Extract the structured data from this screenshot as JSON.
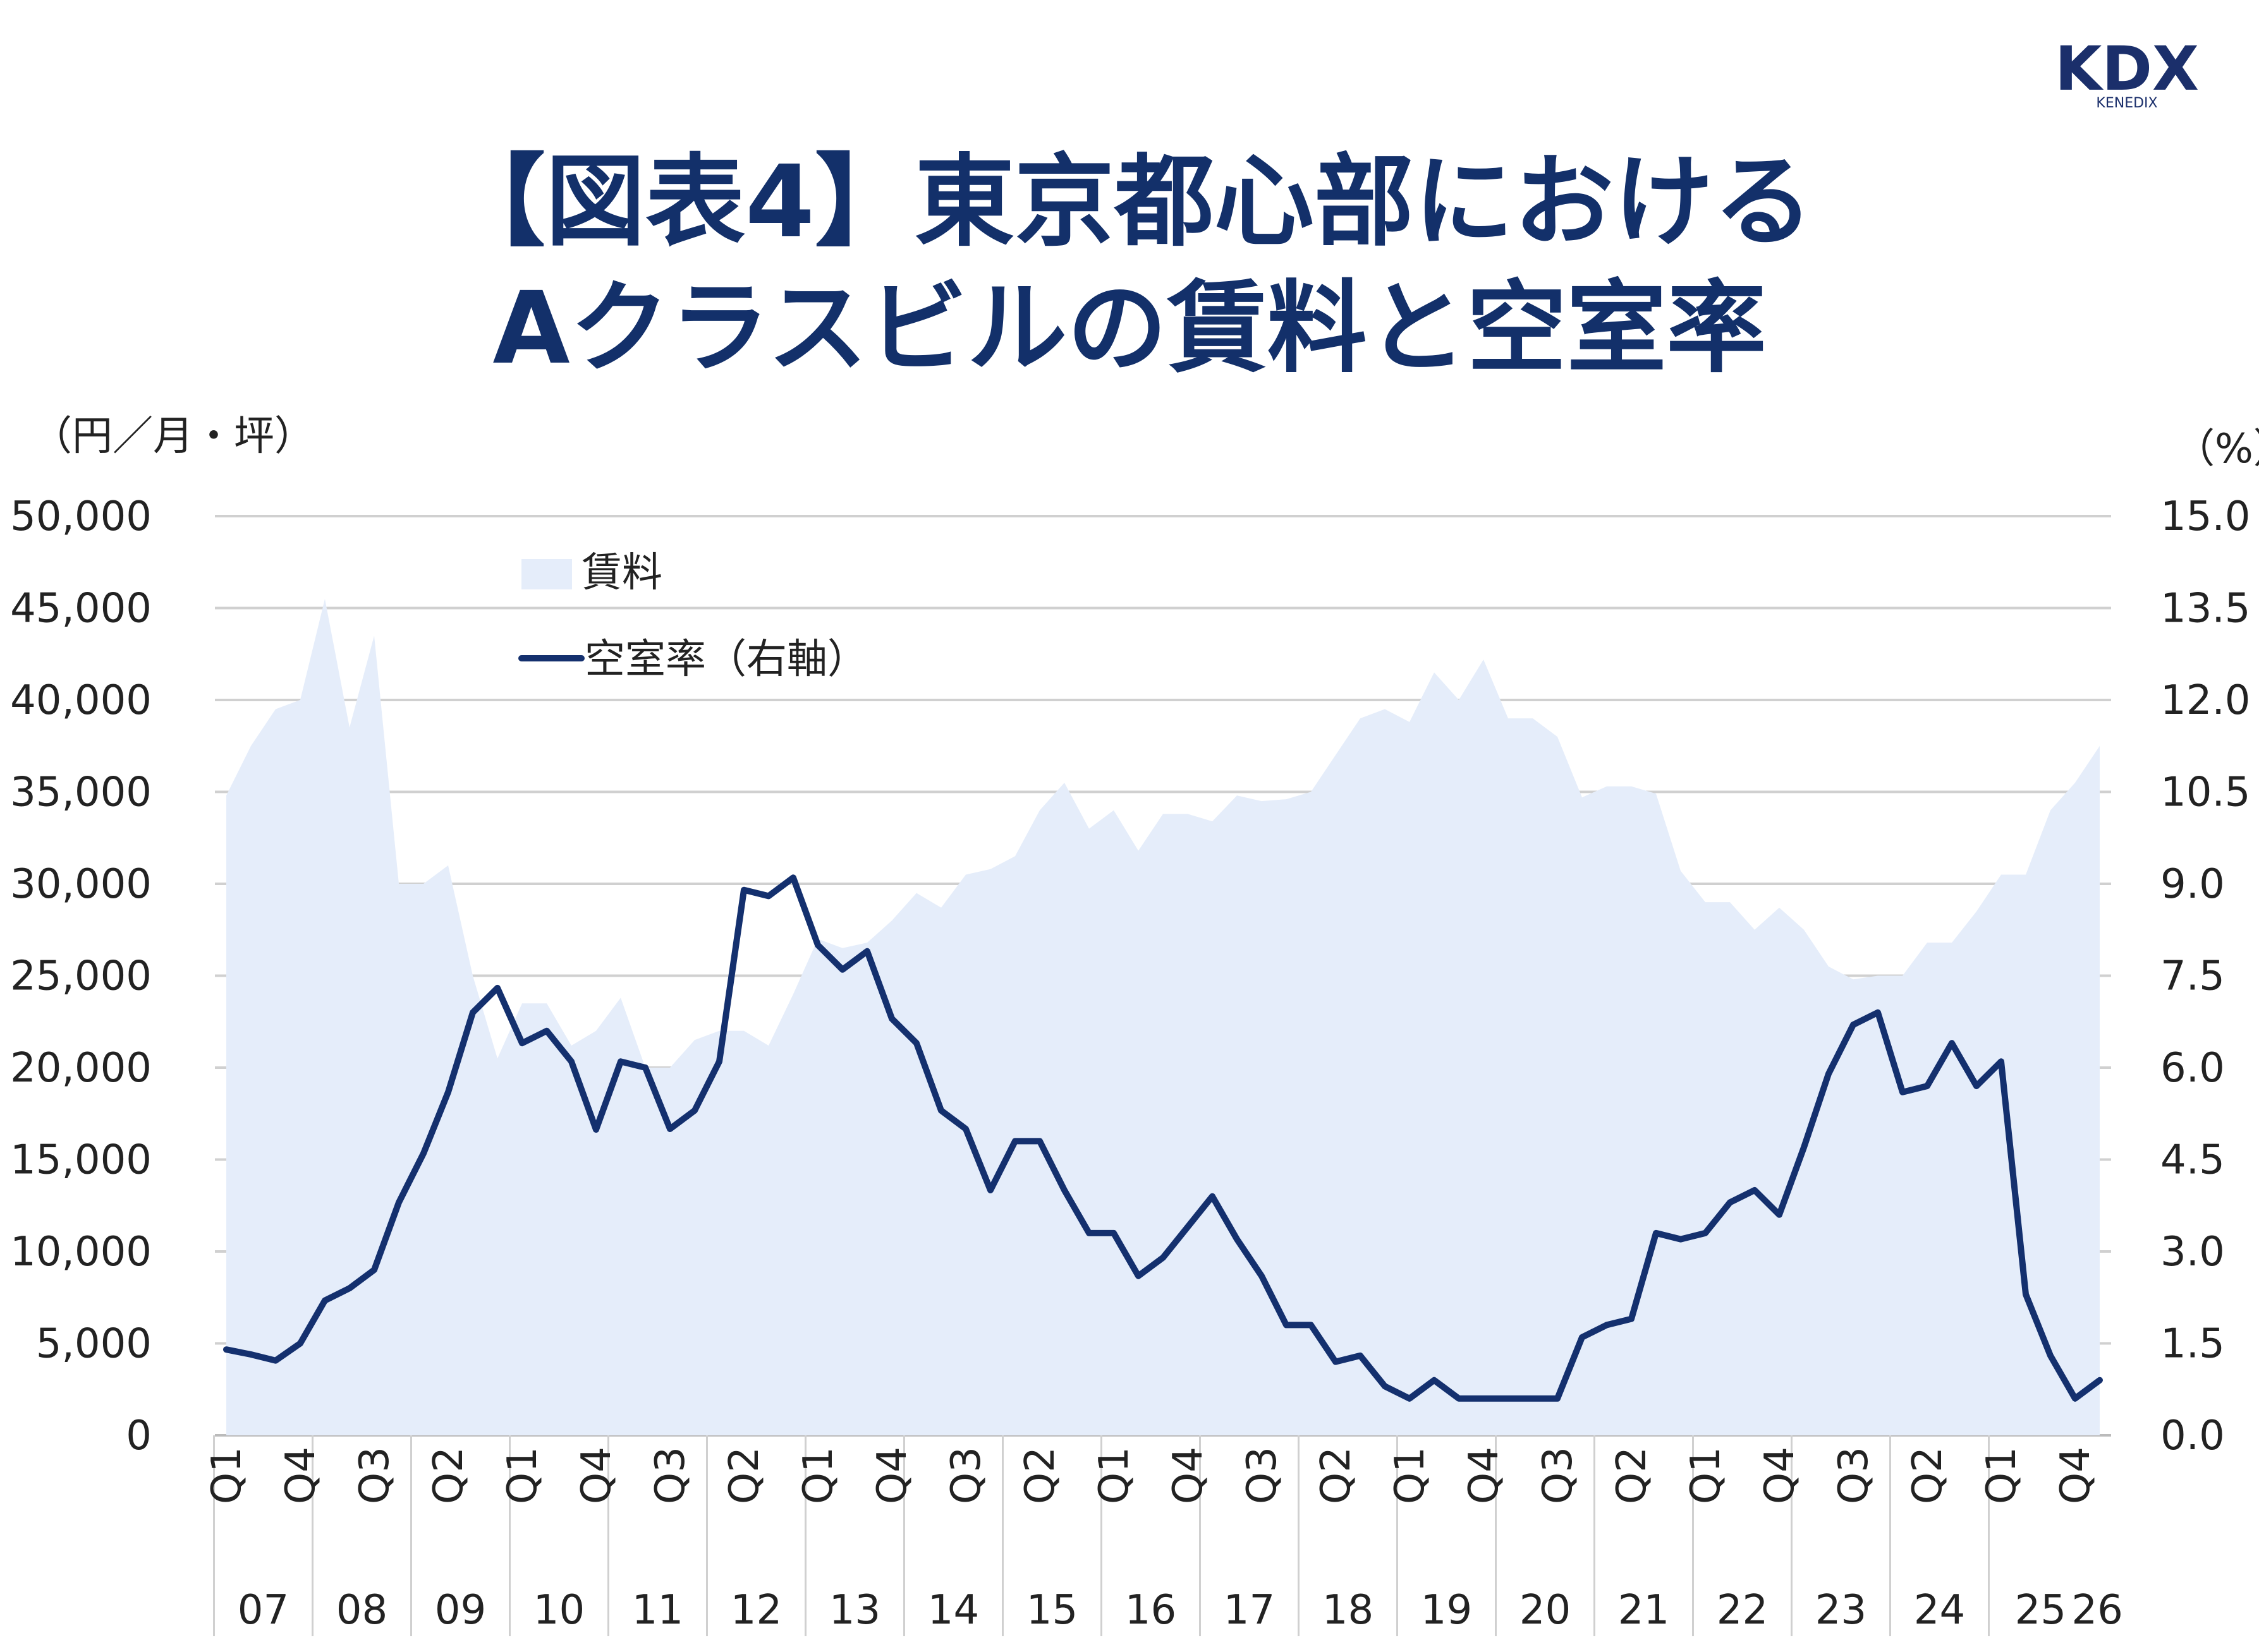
{
  "brand": {
    "logo_text": "KDX",
    "logo_subtext": "KENEDIX",
    "color": "#1b2f6b"
  },
  "title": {
    "line1": "【図表4】東京都心部における",
    "line2": "Aクラスビルの賃料と空室率"
  },
  "colors": {
    "rent_fill": "#e5edfa",
    "vacancy_line": "#14306e",
    "grid": "#cccccc",
    "text": "#222222"
  },
  "chart_data": {
    "type": "area+line",
    "y_left_unit": "（円／月・坪）",
    "y_right_unit": "（%）",
    "y_left_range": [
      0,
      50000
    ],
    "y_right_range": [
      0.0,
      15.0
    ],
    "y_left_ticks": [
      "50,000",
      "45,000",
      "40,000",
      "35,000",
      "30,000",
      "25,000",
      "20,000",
      "15,000",
      "10,000",
      "5,000",
      "0"
    ],
    "y_right_ticks": [
      "15.0",
      "13.5",
      "12.0",
      "10.5",
      "9.0",
      "7.5",
      "6.0",
      "4.5",
      "3.0",
      "1.5",
      "0.0"
    ],
    "grid": true,
    "legend_placement": "top-left",
    "x_quarter_labels": [
      "Q1",
      "Q4",
      "Q3",
      "Q2",
      "Q1",
      "Q4",
      "Q3",
      "Q2",
      "Q1",
      "Q4",
      "Q3",
      "Q2",
      "Q1",
      "Q4",
      "Q3",
      "Q2",
      "Q1",
      "Q4",
      "Q3",
      "Q2",
      "Q1",
      "Q4",
      "Q3",
      "Q2",
      "Q1",
      "Q4"
    ],
    "x_quarter_label_index": [
      0,
      3,
      6,
      9,
      12,
      15,
      18,
      21,
      24,
      27,
      30,
      33,
      36,
      39,
      42,
      45,
      48,
      51,
      54,
      57,
      60,
      63,
      66,
      69,
      72,
      75
    ],
    "x_year_labels": [
      "07",
      "08",
      "09",
      "10",
      "11",
      "12",
      "13",
      "14",
      "15",
      "16",
      "17",
      "18",
      "19",
      "20",
      "21",
      "22",
      "23",
      "24",
      "25",
      "26"
    ],
    "x_year_label_index": [
      1.5,
      5.5,
      9.5,
      13.5,
      17.5,
      21.5,
      25.5,
      29.5,
      33.5,
      37.5,
      41.5,
      45.5,
      49.5,
      53.5,
      57.5,
      61.5,
      65.5,
      69.5,
      73.5,
      75.5
    ],
    "series": [
      {
        "name": "賃料",
        "axis": "left",
        "style": "area",
        "values": [
          34800,
          37500,
          39500,
          40000,
          45500,
          38500,
          43500,
          30000,
          30000,
          31000,
          25000,
          20500,
          23500,
          23500,
          21200,
          22000,
          23800,
          20000,
          20000,
          21500,
          22000,
          22000,
          21200,
          24000,
          27000,
          26500,
          26800,
          28000,
          29500,
          28700,
          30500,
          30800,
          31500,
          34000,
          35500,
          33000,
          34000,
          31800,
          33800,
          33800,
          33400,
          34800,
          34500,
          34600,
          35000,
          37000,
          39000,
          39500,
          38800,
          41500,
          40000,
          42200,
          39000,
          39000,
          38000,
          34700,
          35300,
          35300,
          34900,
          30700,
          29000,
          29000,
          27500,
          28700,
          27500,
          25500,
          24800,
          25000,
          25000,
          26800,
          26800,
          28500,
          30500,
          30500,
          34000,
          35500,
          37500
        ]
      },
      {
        "name": "空室率（右軸）",
        "axis": "right",
        "style": "line",
        "values": [
          1.4,
          1.32,
          1.22,
          1.5,
          2.2,
          2.4,
          2.7,
          3.8,
          4.6,
          5.6,
          6.9,
          7.3,
          6.4,
          6.6,
          6.1,
          4.99,
          6.1,
          6.0,
          5.0,
          5.3,
          6.1,
          8.9,
          8.8,
          9.1,
          8.0,
          7.6,
          7.9,
          6.8,
          6.4,
          5.3,
          5.0,
          4.0,
          4.8,
          4.8,
          4.0,
          3.3,
          3.3,
          2.6,
          2.9,
          3.4,
          3.9,
          3.2,
          2.6,
          1.8,
          1.8,
          1.2,
          1.3,
          0.8,
          0.6,
          0.9,
          0.6,
          0.6,
          0.6,
          0.6,
          0.6,
          1.6,
          1.8,
          1.9,
          3.3,
          3.2,
          3.3,
          3.8,
          4.0,
          3.6,
          4.7,
          5.9,
          6.7,
          6.9,
          5.6,
          5.7,
          6.4,
          5.7,
          6.1,
          2.3,
          1.3,
          0.6,
          0.9
        ]
      }
    ]
  }
}
